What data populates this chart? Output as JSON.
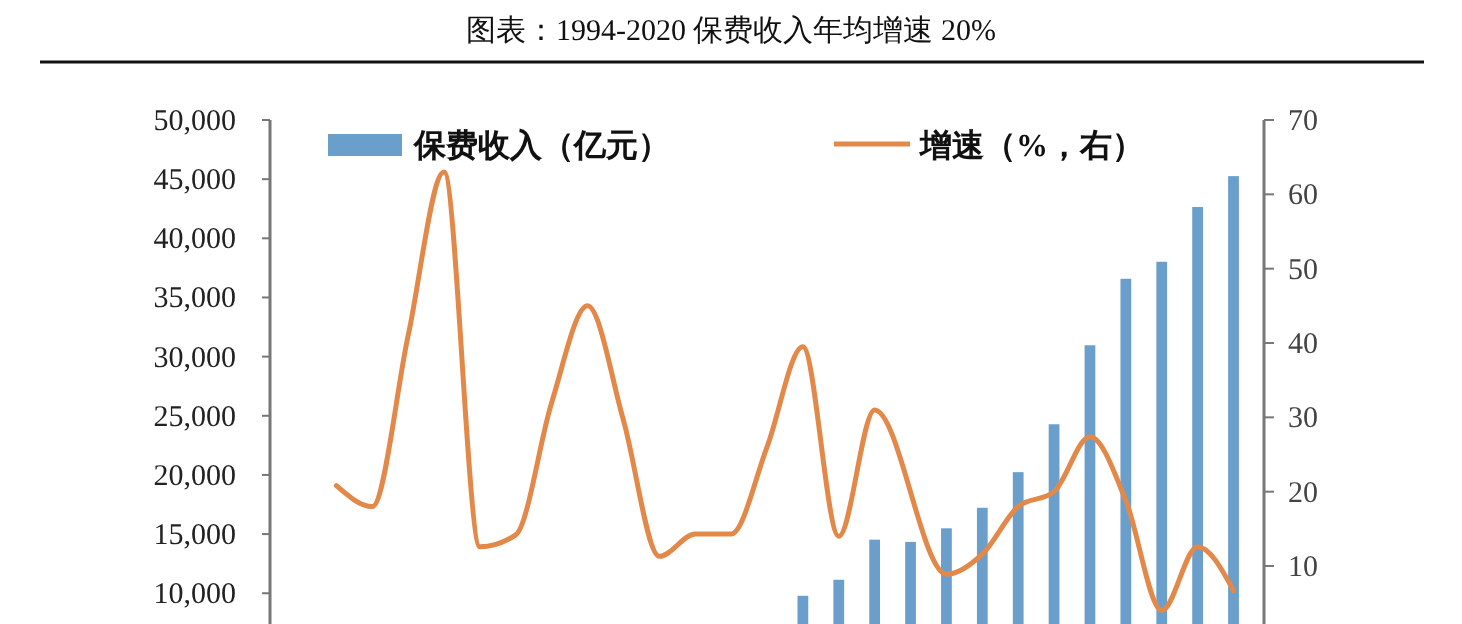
{
  "chart_data": {
    "type": "bar",
    "title": "图表：1994-2020 保费收入年均增速 20%",
    "categories": [
      null,
      null,
      null,
      null,
      null,
      null,
      null,
      null,
      null,
      null,
      null,
      null,
      null,
      null,
      null,
      null,
      null,
      null,
      null,
      null,
      null,
      null,
      null,
      null,
      null,
      null,
      null
    ],
    "series": [
      {
        "name": "保费收入（亿元）",
        "color": "#6a9fcc",
        "values": [
          null,
          null,
          null,
          null,
          null,
          null,
          null,
          null,
          null,
          null,
          null,
          null,
          null,
          null,
          9784,
          11137,
          14528,
          14339,
          15488,
          17222,
          20235,
          24283,
          30959,
          36581,
          38017,
          42645,
          45257
        ]
      },
      {
        "name": "增速（%，右）",
        "type": "line",
        "axis": "y2",
        "color": "#e2894a",
        "values": [
          null,
          20.8,
          18,
          41,
          63,
          12.6,
          14.2,
          32,
          45,
          29.6,
          11.3,
          14.3,
          14.3,
          26,
          39.5,
          14,
          31,
          null,
          8.9,
          11.6,
          18,
          20,
          27.4,
          18.8,
          4,
          12.6,
          6.7
        ]
      }
    ],
    "ylim": [
      7400,
      50000
    ],
    "yticks": [
      {
        "value": 10000,
        "label": "10,000"
      },
      {
        "value": 15000,
        "label": "15,000"
      },
      {
        "value": 20000,
        "label": "20,000"
      },
      {
        "value": 25000,
        "label": "25,000"
      },
      {
        "value": 30000,
        "label": "30,000"
      },
      {
        "value": 35000,
        "label": "35,000"
      },
      {
        "value": 40000,
        "label": "40,000"
      },
      {
        "value": 45000,
        "label": "45,000"
      },
      {
        "value": 50000,
        "label": "50,000"
      }
    ],
    "y2lim": [
      2.2,
      70
    ],
    "y2ticks": [
      10,
      20,
      30,
      40,
      50,
      60,
      70
    ],
    "legend": "top",
    "grid": false
  }
}
